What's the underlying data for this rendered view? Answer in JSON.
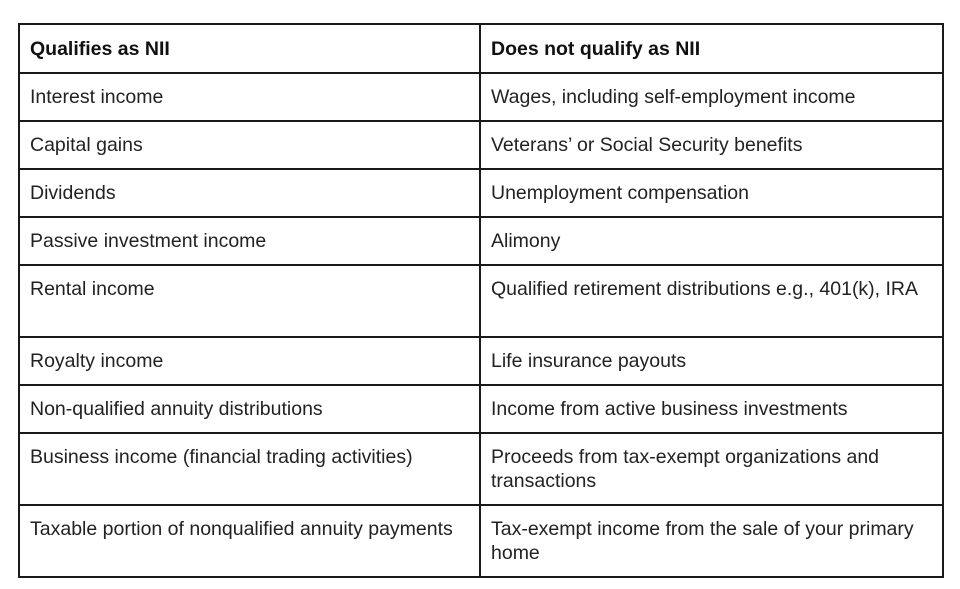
{
  "table": {
    "headers": [
      "Qualifies as NII",
      "Does not qualify as NII"
    ],
    "rows": [
      [
        "Interest income",
        "Wages, including self-employment income"
      ],
      [
        "Capital gains",
        "Veterans’ or Social Security benefits"
      ],
      [
        "Dividends",
        "Unemployment compensation"
      ],
      [
        "Passive investment income",
        "Alimony"
      ],
      [
        "Rental income",
        "Qualified retirement distributions e.g., 401(k), IRA"
      ],
      [
        "Royalty income",
        "Life insurance payouts"
      ],
      [
        "Non-qualified annuity distributions",
        "Income from active business investments"
      ],
      [
        "Business income (financial trading activities)",
        "Proceeds from tax-exempt organizations and transactions"
      ],
      [
        "Taxable portion of nonqualified annuity payments",
        "Tax-exempt income from the sale of your primary home"
      ]
    ]
  }
}
